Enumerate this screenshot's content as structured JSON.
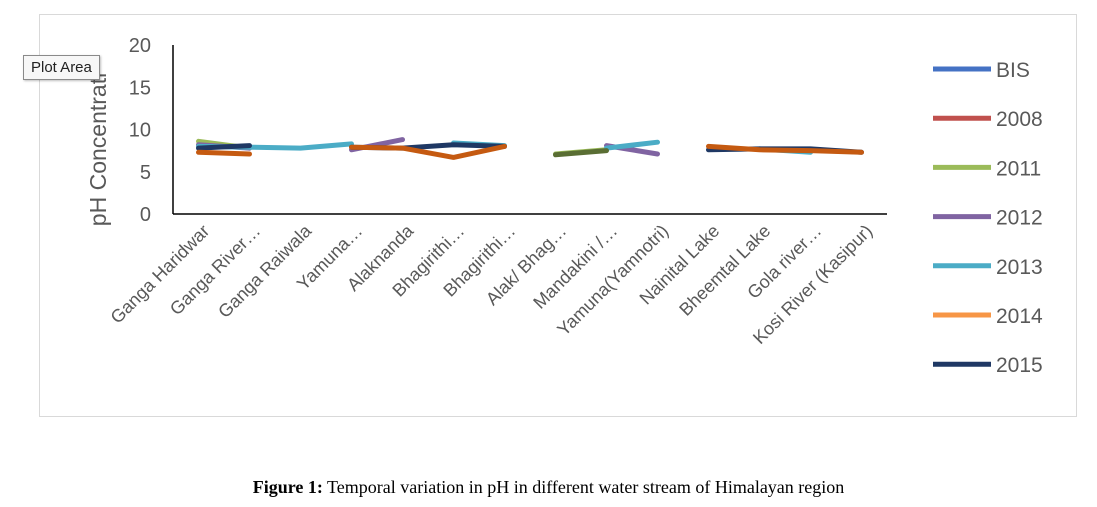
{
  "tooltip": "Plot Area",
  "caption": {
    "label": "Figure 1:",
    "text": " Temporal variation in pH in different water stream of Himalayan region"
  },
  "chart_data": {
    "type": "line",
    "title": "",
    "xlabel": "",
    "ylabel": "pH Concentrati",
    "ylim": [
      0,
      20
    ],
    "yticks": [
      "0",
      "5",
      "10",
      "15",
      "20"
    ],
    "grid": false,
    "legend_position": "right",
    "categories": [
      "Ganga Haridwar",
      "Ganga River…",
      "Ganga Raiwala",
      "Yamuna…",
      "Alaknanda",
      "Bhagirithi…",
      "Bhagirithi…",
      "Alak/ Bhag…",
      "Mandakini /…",
      "Yamuna(Yamnotri)",
      "Nainital Lake",
      "Bheemtal Lake",
      "Gola river…",
      "Kosi River (Kasipur)"
    ],
    "series": [
      {
        "name": "BIS",
        "color": "#4472c4",
        "values": [
          null,
          null,
          null,
          null,
          null,
          null,
          null,
          null,
          null,
          null,
          null,
          null,
          null,
          null
        ]
      },
      {
        "name": "2008",
        "color": "#c0504d",
        "values": [
          null,
          null,
          null,
          null,
          null,
          null,
          null,
          null,
          null,
          null,
          null,
          null,
          null,
          null
        ]
      },
      {
        "name": "2011",
        "color": "#9bbb59",
        "values": [
          8.6,
          7.8,
          null,
          null,
          null,
          null,
          null,
          7.1,
          7.6,
          null,
          null,
          null,
          null,
          null
        ]
      },
      {
        "name": "2012",
        "color": "#8064a2",
        "values": [
          8.2,
          7.8,
          null,
          7.6,
          8.8,
          null,
          null,
          null,
          8.1,
          7.1,
          null,
          null,
          null,
          null
        ]
      },
      {
        "name": "2013",
        "color": "#4bacc6",
        "values": [
          8.0,
          7.9,
          7.8,
          8.3,
          null,
          8.4,
          8.1,
          null,
          7.8,
          8.5,
          null,
          7.7,
          7.3,
          null
        ]
      },
      {
        "name": "2014",
        "color": "#f79646",
        "values": [
          null,
          null,
          null,
          null,
          null,
          null,
          null,
          null,
          null,
          null,
          null,
          null,
          null,
          null
        ]
      },
      {
        "name": "2015",
        "color": "#1f3864",
        "values": [
          7.8,
          8.1,
          null,
          7.9,
          7.8,
          8.2,
          8.0,
          null,
          null,
          null,
          7.6,
          7.7,
          7.7,
          7.3
        ]
      },
      {
        "name": "",
        "color": "#c55a11",
        "values": [
          7.3,
          7.1,
          null,
          7.9,
          7.8,
          6.7,
          8.0,
          null,
          null,
          null,
          8.0,
          7.6,
          7.5,
          7.3
        ],
        "legend": false
      },
      {
        "name": "",
        "color": "#5a6e34",
        "values": [
          null,
          null,
          null,
          null,
          null,
          null,
          null,
          7.0,
          7.5,
          null,
          null,
          null,
          null,
          null
        ],
        "legend": false
      }
    ]
  }
}
